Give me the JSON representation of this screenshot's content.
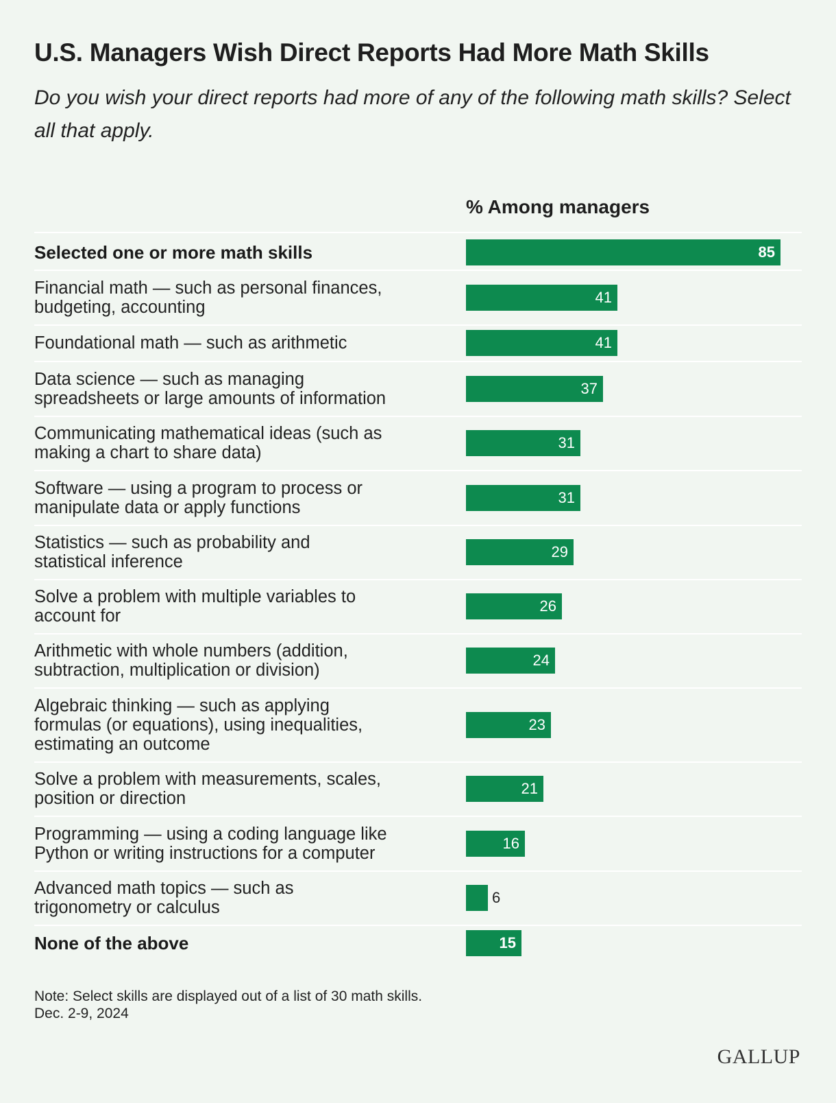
{
  "title": "U.S. Managers Wish Direct Reports Had More Math Skills",
  "subtitle": "Do you wish your direct reports had more of any of the following math skills? Select all that apply.",
  "column_header": "% Among managers",
  "note": "Note: Select skills are displayed out of a list of 30 math skills.",
  "date": "Dec. 2-9, 2024",
  "brand": "GALLUP",
  "colors": {
    "bar": "#0d8a4f",
    "background": "#f1f6f1"
  },
  "chart_data": {
    "type": "bar",
    "orientation": "horizontal",
    "title": "U.S. Managers Wish Direct Reports Had More Math Skills",
    "xlabel": "% Among managers",
    "xlim": [
      0,
      85
    ],
    "grid": false,
    "categories": [
      "Selected one or more math skills",
      "Financial math — such as personal finances, budgeting, accounting",
      "Foundational math — such as arithmetic",
      "Data science — such as managing spreadsheets or large amounts of information",
      "Communicating mathematical ideas (such as making a chart to share data)",
      "Software — using a program to process or manipulate data or apply functions",
      "Statistics — such as probability and statistical inference",
      "Solve a problem with multiple variables to account for",
      "Arithmetic with whole numbers (addition, subtraction, multiplication or division)",
      "Algebraic thinking — such as applying formulas (or equations), using inequalities, estimating an outcome",
      "Solve a problem with measurements, scales, position or direction",
      "Programming — using a coding language like Python or writing instructions for a computer",
      "Advanced math topics — such as trigonometry or calculus",
      "None of the above"
    ],
    "values": [
      85,
      41,
      41,
      37,
      31,
      31,
      29,
      26,
      24,
      23,
      21,
      16,
      6,
      15
    ],
    "bold_rows": [
      0,
      13
    ]
  }
}
